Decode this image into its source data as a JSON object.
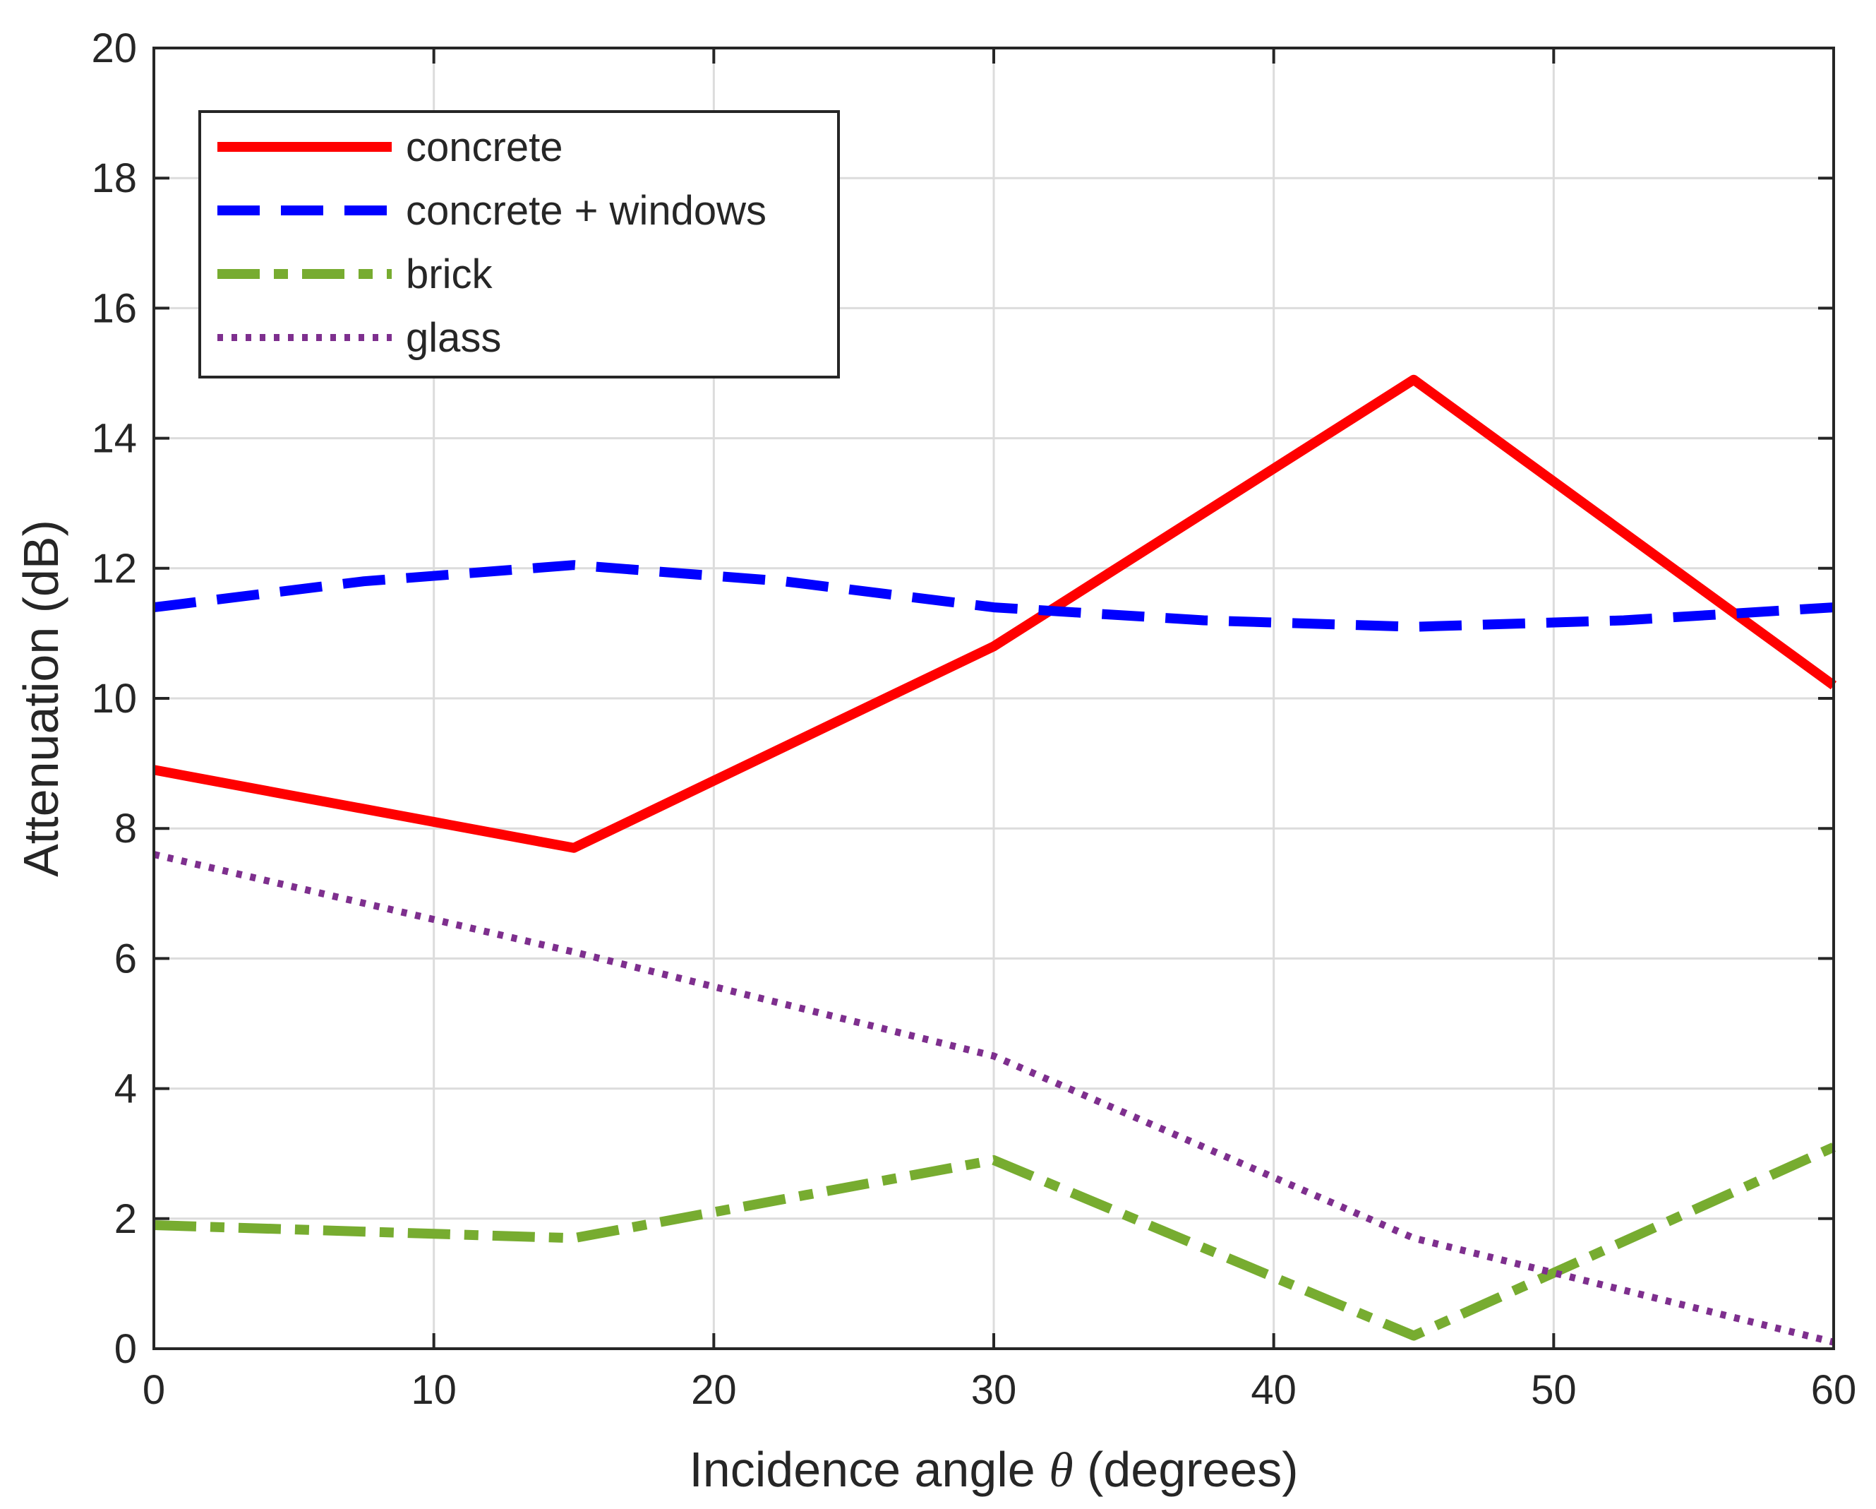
{
  "chart_data": {
    "type": "line",
    "title": "",
    "xlabel_prefix": "Incidence angle ",
    "xlabel_symbol": "θ",
    "xlabel_suffix": " (degrees)",
    "ylabel": "Attenuation (dB)",
    "xlim": [
      0,
      60
    ],
    "ylim": [
      0,
      20
    ],
    "xticks": [
      0,
      10,
      20,
      30,
      40,
      50,
      60
    ],
    "yticks": [
      0,
      2,
      4,
      6,
      8,
      10,
      12,
      14,
      16,
      18,
      20
    ],
    "xtick_labels": [
      "0",
      "10",
      "20",
      "30",
      "40",
      "50",
      "60"
    ],
    "ytick_labels": [
      "0",
      "2",
      "4",
      "6",
      "8",
      "10",
      "12",
      "14",
      "16",
      "18",
      "20"
    ],
    "grid": true,
    "legend_position": "top-left",
    "series": [
      {
        "name": "concrete",
        "color": "#ff0000",
        "style": "solid",
        "x": [
          0,
          15,
          30,
          45,
          60
        ],
        "y": [
          8.9,
          7.7,
          10.8,
          14.9,
          10.2
        ]
      },
      {
        "name": "concrete + windows",
        "color": "#0000ff",
        "style": "dashed",
        "x": [
          0,
          7.5,
          15,
          22.5,
          30,
          37.5,
          45,
          52.5,
          60
        ],
        "y": [
          11.4,
          11.8,
          12.05,
          11.8,
          11.4,
          11.2,
          11.1,
          11.2,
          11.4
        ]
      },
      {
        "name": "brick",
        "color": "#77ac30",
        "style": "dashdot",
        "x": [
          0,
          15,
          30,
          45,
          60
        ],
        "y": [
          1.9,
          1.7,
          2.9,
          0.2,
          3.1
        ]
      },
      {
        "name": "glass",
        "color": "#7e2f8e",
        "style": "dotted",
        "x": [
          0,
          15,
          30,
          45,
          60
        ],
        "y": [
          7.6,
          6.1,
          4.5,
          1.7,
          0.1
        ]
      }
    ]
  }
}
